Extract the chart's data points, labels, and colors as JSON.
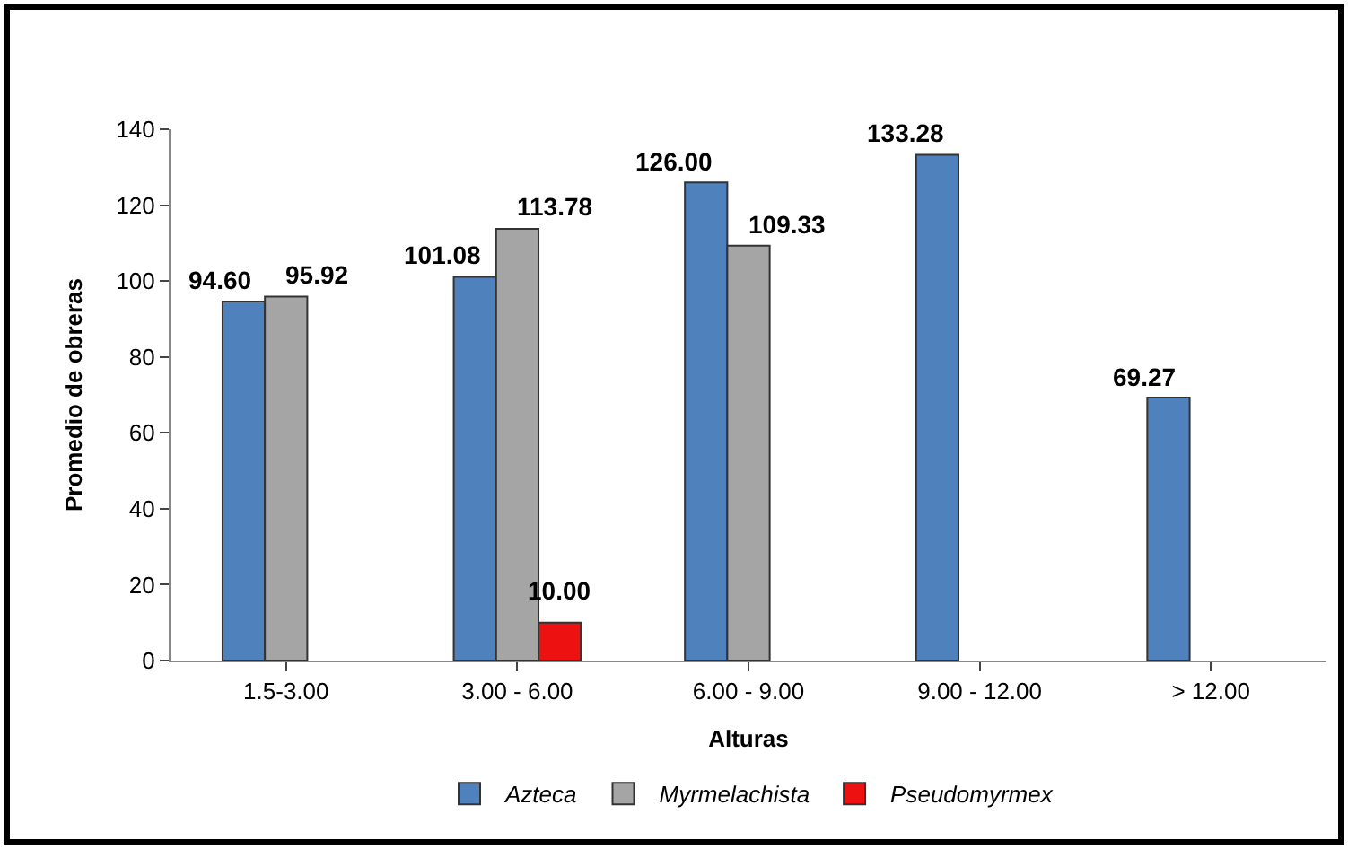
{
  "chart_data": {
    "type": "bar",
    "xlabel": "Alturas",
    "ylabel": "Promedio de obreras",
    "categories": [
      "1.5-3.00",
      "3.00 - 6.00",
      "6.00 - 9.00",
      "9.00 - 12.00",
      "> 12.00"
    ],
    "series": [
      {
        "name": "Azteca",
        "color": "#4f81bd",
        "values": [
          94.6,
          101.08,
          126.0,
          133.28,
          69.27
        ],
        "value_labels": [
          "94.60",
          "101.08",
          "126.00",
          "133.28",
          "69.27"
        ]
      },
      {
        "name": "Myrmelachista",
        "color": "#a5a5a5",
        "values": [
          95.92,
          113.78,
          109.33,
          null,
          null
        ],
        "value_labels": [
          "95.92",
          "113.78",
          "109.33",
          null,
          null
        ]
      },
      {
        "name": "Pseudomyrmex",
        "color": "#ee1111",
        "values": [
          null,
          10.0,
          null,
          null,
          null
        ],
        "value_labels": [
          null,
          "10.00",
          null,
          null,
          null
        ]
      }
    ],
    "ylim": [
      0,
      140
    ],
    "yticks": [
      0,
      20,
      40,
      60,
      80,
      100,
      120,
      140
    ],
    "legend": "bottom"
  }
}
